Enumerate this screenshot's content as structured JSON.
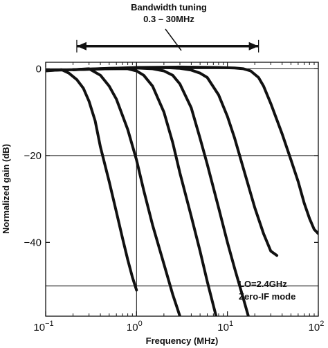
{
  "chart_data": {
    "type": "line",
    "xlabel": "Frequency (MHz)",
    "ylabel": "Normalized gain (dB)",
    "x_scale": "log",
    "xlim": [
      0.1,
      100
    ],
    "ylim": [
      -57,
      1.5
    ],
    "x_ticks": [
      {
        "value": 0.1,
        "base": "10",
        "exp": "−1"
      },
      {
        "value": 1,
        "base": "10",
        "exp": "0"
      },
      {
        "value": 10,
        "base": "10",
        "exp": "1"
      },
      {
        "value": 100,
        "base": "10",
        "exp": "2"
      }
    ],
    "y_ticks": [
      {
        "value": 0,
        "label": "0"
      },
      {
        "value": -20,
        "label": "−20"
      },
      {
        "value": -40,
        "label": "−40"
      }
    ],
    "grid": {
      "x": [
        1
      ],
      "y": [
        0,
        -20,
        -50
      ]
    },
    "annotations": {
      "bandwidth_title": "Bandwidth tuning",
      "bandwidth_range": "0.3 – 30MHz",
      "bandwidth_arrow_x": [
        0.22,
        22
      ],
      "bandwidth_arrow_y": 5.2,
      "lo_text": "LO=2.4GHz",
      "mode_text": "Zero-IF mode"
    },
    "series": [
      {
        "x": [
          0.1,
          0.15,
          0.18,
          0.22,
          0.26,
          0.3,
          0.35,
          0.4,
          0.5,
          0.6,
          0.7,
          0.8,
          0.9,
          1.0
        ],
        "y": [
          -0.5,
          -0.2,
          -1,
          -2.5,
          -4.5,
          -7.5,
          -12,
          -18,
          -26,
          -33,
          -39,
          -44,
          -48,
          -51
        ]
      },
      {
        "x": [
          0.1,
          0.2,
          0.3,
          0.4,
          0.5,
          0.6,
          0.8,
          1.0,
          1.2,
          1.5,
          2.0,
          2.5,
          3.0
        ],
        "y": [
          -0.4,
          -0.2,
          0,
          -1.5,
          -4,
          -7,
          -14,
          -21,
          -28,
          -36,
          -45,
          -52,
          -57
        ]
      },
      {
        "x": [
          0.2,
          0.5,
          0.8,
          1.0,
          1.2,
          1.5,
          2.0,
          2.5,
          3.0,
          4.0,
          5.0,
          6.0,
          7.5
        ],
        "y": [
          -0.2,
          0,
          0,
          -0.5,
          -1.5,
          -4,
          -10,
          -17,
          -24,
          -34,
          -42,
          -49,
          -57
        ]
      },
      {
        "x": [
          0.2,
          0.5,
          1.0,
          1.5,
          2.0,
          2.5,
          3.0,
          4.0,
          5.0,
          6.0,
          8.0,
          10,
          12,
          15,
          17
        ],
        "y": [
          -0.2,
          0.1,
          0.2,
          0,
          -0.5,
          -1.5,
          -3.5,
          -9,
          -16,
          -22,
          -32,
          -40,
          -46,
          -53,
          -57
        ]
      },
      {
        "x": [
          0.2,
          1.0,
          2.0,
          3.0,
          4.0,
          5.0,
          6.0,
          8.0,
          10,
          12,
          15,
          20,
          25,
          30,
          35
        ],
        "y": [
          -0.2,
          0.2,
          0.3,
          0.1,
          -0.3,
          -1,
          -2,
          -6,
          -11,
          -16,
          -23,
          -32,
          -38,
          -42,
          -43
        ]
      },
      {
        "x": [
          0.2,
          1.0,
          3.0,
          8.0,
          12,
          15,
          18,
          22,
          25,
          30,
          40,
          50,
          60,
          70,
          80,
          90,
          100
        ],
        "y": [
          -0.2,
          0.3,
          0.4,
          0.3,
          0.2,
          0,
          -0.5,
          -2,
          -4,
          -8,
          -15,
          -21,
          -26,
          -31,
          -34.5,
          -37,
          -38
        ]
      }
    ]
  }
}
